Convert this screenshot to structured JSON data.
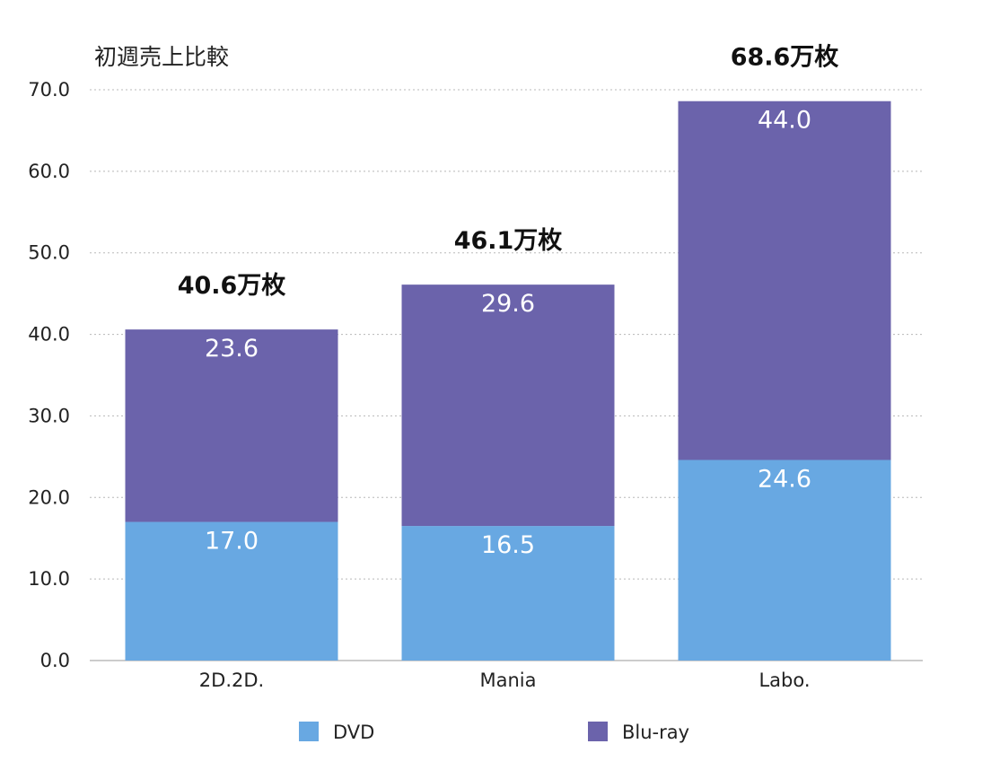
{
  "chart_data": {
    "type": "bar",
    "stacked": true,
    "title": "初週売上比較",
    "categories": [
      "2D.2D.",
      "Mania",
      "Labo."
    ],
    "series": [
      {
        "name": "DVD",
        "values": [
          17.0,
          16.5,
          24.6
        ],
        "color": "#68a8e2"
      },
      {
        "name": "Blu-ray",
        "values": [
          23.6,
          29.6,
          44.0
        ],
        "color": "#6b63ab"
      }
    ],
    "segment_labels": [
      [
        "17.0",
        "16.5",
        "24.6"
      ],
      [
        "23.6",
        "29.6",
        "44.0"
      ]
    ],
    "totals": [
      "40.6万枚",
      "46.1万枚",
      "68.6万枚"
    ],
    "ylim": [
      0,
      70
    ],
    "yticks": [
      "0.0",
      "10.0",
      "20.0",
      "30.0",
      "40.0",
      "50.0",
      "60.0",
      "70.0"
    ],
    "grid": true,
    "legend_position": "bottom"
  }
}
